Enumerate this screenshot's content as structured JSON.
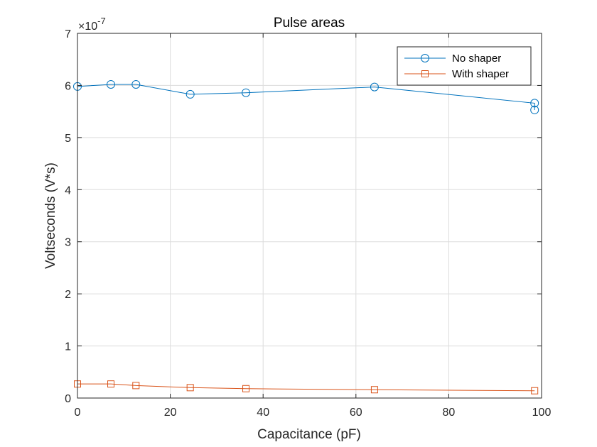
{
  "chart_data": {
    "type": "line",
    "title": "Pulse areas",
    "xlabel": "Capacitance (pF)",
    "ylabel": "Voltseconds (V*s)",
    "y_exponent_base": "×10",
    "y_exponent_power": "-7",
    "y_scale": 1e-07,
    "xlim": [
      0,
      100
    ],
    "ylim": [
      0,
      7
    ],
    "xticks": [
      0,
      20,
      40,
      60,
      80,
      100
    ],
    "xtick_labels": [
      "0",
      "20",
      "40",
      "60",
      "80",
      "100"
    ],
    "yticks": [
      0,
      1,
      2,
      3,
      4,
      5,
      6,
      7
    ],
    "ytick_labels": [
      "0",
      "1",
      "2",
      "3",
      "4",
      "5",
      "6",
      "7"
    ],
    "grid": true,
    "legend_position": "top-right",
    "series": [
      {
        "name": "No shaper",
        "color": "#0072BD",
        "marker": "circle",
        "x": [
          0,
          7.2,
          12.6,
          24.3,
          36.3,
          64.0,
          98.5,
          98.5
        ],
        "y": [
          5.98,
          6.02,
          6.02,
          5.83,
          5.86,
          5.97,
          5.66,
          5.53
        ]
      },
      {
        "name": "With shaper",
        "color": "#D95319",
        "marker": "square",
        "x": [
          0,
          7.2,
          12.6,
          24.3,
          36.3,
          64.0,
          98.5
        ],
        "y": [
          0.27,
          0.27,
          0.24,
          0.2,
          0.18,
          0.16,
          0.14
        ]
      }
    ]
  }
}
